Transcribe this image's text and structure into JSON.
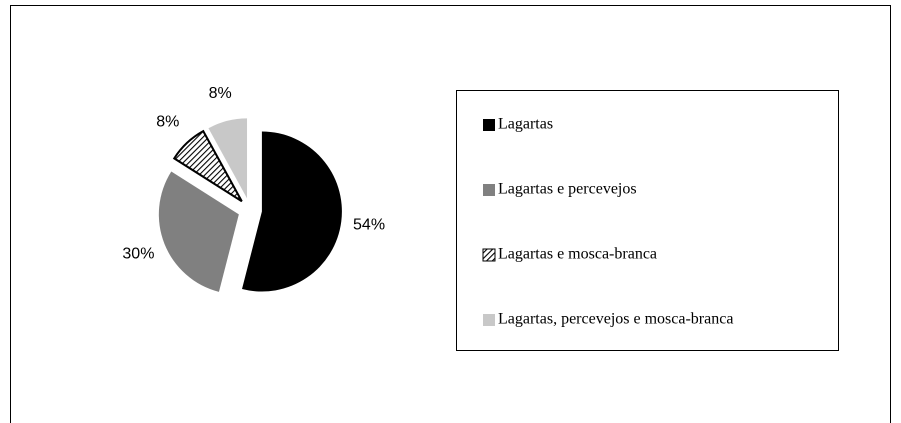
{
  "chart_data": {
    "type": "pie",
    "categories": [
      "Lagartas",
      "Lagartas e percevejos",
      "Lagartas e mosca-branca",
      "Lagartas, percevejos e mosca-branca"
    ],
    "values": [
      54,
      30,
      8,
      8
    ],
    "value_labels": [
      "54%",
      "30%",
      "8%",
      "8%"
    ],
    "colors": [
      "#000000",
      "#808080",
      "#000000",
      "#c8c8c8"
    ],
    "hatch": [
      false,
      false,
      true,
      false
    ],
    "legend": "right"
  }
}
